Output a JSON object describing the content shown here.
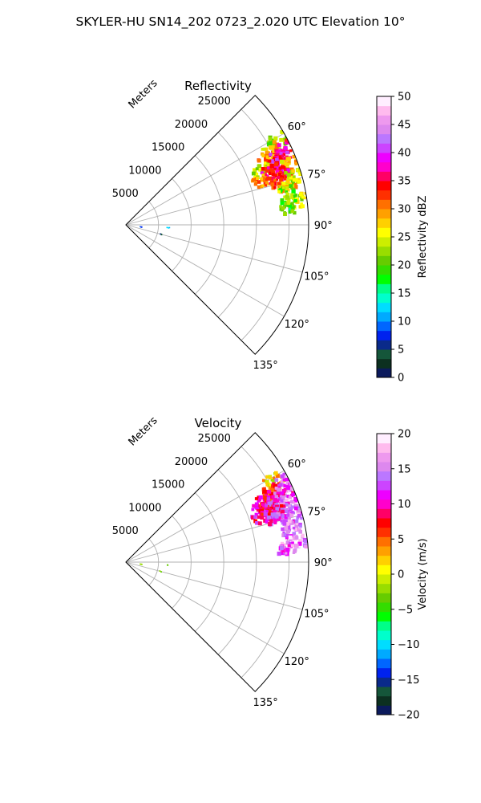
{
  "figure": {
    "suptitle": "SKYLER-HU  SN14_202  0723_2.020 UTC Elevation 10°"
  },
  "chart_data": [
    {
      "type": "polar-sector",
      "title": "Reflectivity",
      "radial_label": "Meters",
      "radial_ticks": [
        5000,
        10000,
        15000,
        20000,
        25000
      ],
      "radial_tick_labels": [
        "5000",
        "10000",
        "15000",
        "20000",
        "25000"
      ],
      "rmax": 28000,
      "theta_range_deg": [
        45,
        135
      ],
      "theta_ticks_deg": [
        60,
        75,
        90,
        105,
        120,
        135
      ],
      "theta_tick_labels": [
        "60°",
        "75°",
        "90°",
        "105°",
        "120°",
        "135°"
      ],
      "grid": true,
      "colorbar": {
        "label": "Reflectivity dBZ",
        "min": 0,
        "max": 50,
        "ticks": [
          0,
          5,
          10,
          15,
          20,
          25,
          30,
          35,
          40,
          45,
          50
        ],
        "tick_labels": [
          "0",
          "5",
          "10",
          "15",
          "20",
          "25",
          "30",
          "35",
          "40",
          "45",
          "50"
        ],
        "colors": [
          "#0b1a5c",
          "#0c3020",
          "#15563a",
          "#0a2a8a",
          "#0022ee",
          "#0066ff",
          "#00aaff",
          "#00ddff",
          "#00ffcc",
          "#00ff88",
          "#00ff00",
          "#33dd00",
          "#66cc00",
          "#99dd00",
          "#ccee00",
          "#ffff00",
          "#ffd000",
          "#ffa000",
          "#ff7000",
          "#ff3000",
          "#ff0000",
          "#ff0066",
          "#ff00cc",
          "#ee00ff",
          "#cc44ff",
          "#bb77ff",
          "#dd88ee",
          "#ee99ee",
          "#ffbbee",
          "#ffeeff"
        ]
      },
      "echoes": [
        {
          "az": 61,
          "r": 26500,
          "value": 22
        },
        {
          "az": 63,
          "r": 25000,
          "value": 28
        },
        {
          "az": 64,
          "r": 26800,
          "value": 34
        },
        {
          "az": 66,
          "r": 24000,
          "value": 30
        },
        {
          "az": 66,
          "r": 26000,
          "value": 37
        },
        {
          "az": 68,
          "r": 22500,
          "value": 24
        },
        {
          "az": 68,
          "r": 25000,
          "value": 38
        },
        {
          "az": 70,
          "r": 23500,
          "value": 35
        },
        {
          "az": 70,
          "r": 26500,
          "value": 28
        },
        {
          "az": 72,
          "r": 22000,
          "value": 30
        },
        {
          "az": 72,
          "r": 25000,
          "value": 36
        },
        {
          "az": 74,
          "r": 24000,
          "value": 33
        },
        {
          "az": 74,
          "r": 26800,
          "value": 24
        },
        {
          "az": 76,
          "r": 25500,
          "value": 28
        },
        {
          "az": 79,
          "r": 25500,
          "value": 22
        },
        {
          "az": 82,
          "r": 26500,
          "value": 24
        },
        {
          "az": 84,
          "r": 25200,
          "value": 20
        },
        {
          "az": 94,
          "r": 6500,
          "value": 12
        },
        {
          "az": 105,
          "r": 5500,
          "value": 5
        },
        {
          "az": 98,
          "r": 2300,
          "value": 8
        }
      ]
    },
    {
      "type": "polar-sector",
      "title": "Velocity",
      "radial_label": "Meters",
      "radial_ticks": [
        5000,
        10000,
        15000,
        20000,
        25000
      ],
      "radial_tick_labels": [
        "5000",
        "10000",
        "15000",
        "20000",
        "25000"
      ],
      "rmax": 28000,
      "theta_range_deg": [
        45,
        135
      ],
      "theta_ticks_deg": [
        60,
        75,
        90,
        105,
        120,
        135
      ],
      "theta_tick_labels": [
        "60°",
        "75°",
        "90°",
        "105°",
        "120°",
        "135°"
      ],
      "grid": true,
      "colorbar": {
        "label": "Velocity (m/s)",
        "min": -20,
        "max": 20,
        "ticks": [
          -20,
          -15,
          -10,
          -5,
          0,
          5,
          10,
          15,
          20
        ],
        "tick_labels": [
          "−20",
          "−15",
          "−10",
          "−5",
          "0",
          "5",
          "10",
          "15",
          "20"
        ],
        "colors": [
          "#0b1a5c",
          "#0c3020",
          "#15563a",
          "#0a2a8a",
          "#0022ee",
          "#0066ff",
          "#00aaff",
          "#00ddff",
          "#00ffcc",
          "#00ff88",
          "#00ff00",
          "#33dd00",
          "#66cc00",
          "#99dd00",
          "#ccee00",
          "#ffff00",
          "#ffd000",
          "#ffa000",
          "#ff7000",
          "#ff3000",
          "#ff0000",
          "#ff0066",
          "#ff00cc",
          "#ee00ff",
          "#cc44ff",
          "#bb77ff",
          "#dd88ee",
          "#ee99ee",
          "#ffbbee",
          "#ffeeff"
        ]
      },
      "echoes": [
        {
          "az": 61,
          "r": 26000,
          "value": 2
        },
        {
          "az": 63,
          "r": 27000,
          "value": 14
        },
        {
          "az": 64,
          "r": 24500,
          "value": 6
        },
        {
          "az": 66,
          "r": 23000,
          "value": 9
        },
        {
          "az": 66,
          "r": 26500,
          "value": 13
        },
        {
          "az": 68,
          "r": 22500,
          "value": 8
        },
        {
          "az": 68,
          "r": 25000,
          "value": 12
        },
        {
          "az": 70,
          "r": 23500,
          "value": 10
        },
        {
          "az": 70,
          "r": 26500,
          "value": 14
        },
        {
          "az": 72,
          "r": 22000,
          "value": 9
        },
        {
          "az": 72,
          "r": 25000,
          "value": 11
        },
        {
          "az": 74,
          "r": 24000,
          "value": 12
        },
        {
          "az": 74,
          "r": 26800,
          "value": 15
        },
        {
          "az": 77,
          "r": 25500,
          "value": 14
        },
        {
          "az": 80,
          "r": 26000,
          "value": 15
        },
        {
          "az": 83,
          "r": 26500,
          "value": 15
        },
        {
          "az": 85,
          "r": 25000,
          "value": 14
        },
        {
          "az": 94,
          "r": 6500,
          "value": -4
        },
        {
          "az": 105,
          "r": 5500,
          "value": -3
        },
        {
          "az": 98,
          "r": 2300,
          "value": -2
        }
      ]
    }
  ]
}
